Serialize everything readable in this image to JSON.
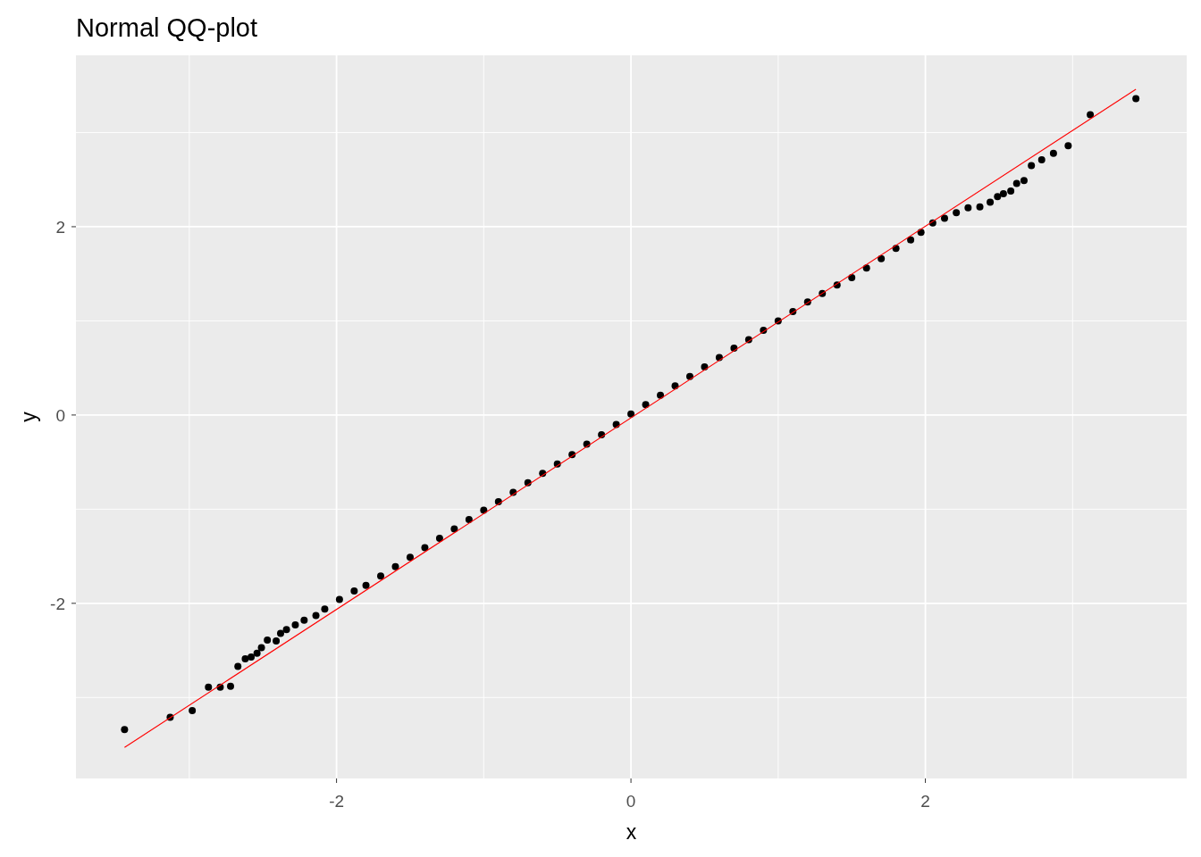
{
  "chart_data": {
    "type": "scatter",
    "title": "Normal QQ-plot",
    "xlabel": "x",
    "ylabel": "y",
    "xlim": [
      -3.77,
      3.775
    ],
    "ylim": [
      -3.86,
      3.82
    ],
    "xticks": [
      {
        "value": -3,
        "label": null
      },
      -2,
      {
        "value": -1,
        "label": null
      },
      0,
      {
        "value": 1,
        "label": null
      },
      2,
      {
        "value": 3,
        "label": null
      }
    ],
    "yticks": [
      {
        "value": -3,
        "label": null
      },
      -2,
      {
        "value": -1,
        "label": null
      },
      0,
      {
        "value": 1,
        "label": null
      },
      2,
      {
        "value": 3,
        "label": null
      }
    ],
    "grid": true,
    "marker": "circle",
    "series": [
      {
        "color": "#000000",
        "x": [
          -3.44,
          -3.13,
          -2.98,
          -2.87,
          -2.79,
          -2.72,
          -2.67,
          -2.62,
          -2.58,
          -2.54,
          -2.51,
          -2.47,
          -2.41,
          -2.38,
          -2.34,
          -2.28,
          -2.22,
          -2.14,
          -2.08,
          -1.98,
          -1.88,
          -1.8,
          -1.7,
          -1.6,
          -1.5,
          -1.4,
          -1.3,
          -1.2,
          -1.1,
          -1.0,
          -0.9,
          -0.8,
          -0.7,
          -0.6,
          -0.5,
          -0.4,
          -0.3,
          -0.2,
          -0.1,
          0,
          0.1,
          0.2,
          0.3,
          0.4,
          0.5,
          0.6,
          0.7,
          0.8,
          0.9,
          1.0,
          1.1,
          1.2,
          1.3,
          1.4,
          1.5,
          1.6,
          1.7,
          1.8,
          1.9,
          1.97,
          2.05,
          2.13,
          2.21,
          2.29,
          2.37,
          2.44,
          2.49,
          2.53,
          2.58,
          2.62,
          2.67,
          2.72,
          2.79,
          2.87,
          2.97,
          3.12,
          3.43
        ],
        "values": [
          -3.34,
          -3.21,
          -3.14,
          -2.89,
          -2.89,
          -2.88,
          -2.67,
          -2.59,
          -2.57,
          -2.53,
          -2.47,
          -2.39,
          -2.4,
          -2.32,
          -2.28,
          -2.23,
          -2.18,
          -2.13,
          -2.06,
          -1.96,
          -1.87,
          -1.81,
          -1.71,
          -1.61,
          -1.51,
          -1.41,
          -1.31,
          -1.21,
          -1.11,
          -1.01,
          -0.92,
          -0.82,
          -0.72,
          -0.62,
          -0.52,
          -0.42,
          -0.31,
          -0.21,
          -0.1,
          0.01,
          0.11,
          0.21,
          0.31,
          0.41,
          0.51,
          0.61,
          0.71,
          0.8,
          0.9,
          1.0,
          1.1,
          1.2,
          1.29,
          1.38,
          1.46,
          1.56,
          1.66,
          1.77,
          1.86,
          1.94,
          2.04,
          2.09,
          2.15,
          2.2,
          2.21,
          2.26,
          2.32,
          2.35,
          2.38,
          2.46,
          2.49,
          2.65,
          2.71,
          2.78,
          2.86,
          3.19,
          3.36
        ]
      },
      {
        "type": "line",
        "color": "#ff0000",
        "marker": "none",
        "x": [
          -3.44,
          3.43
        ],
        "values": [
          -3.53,
          3.46
        ]
      }
    ]
  }
}
